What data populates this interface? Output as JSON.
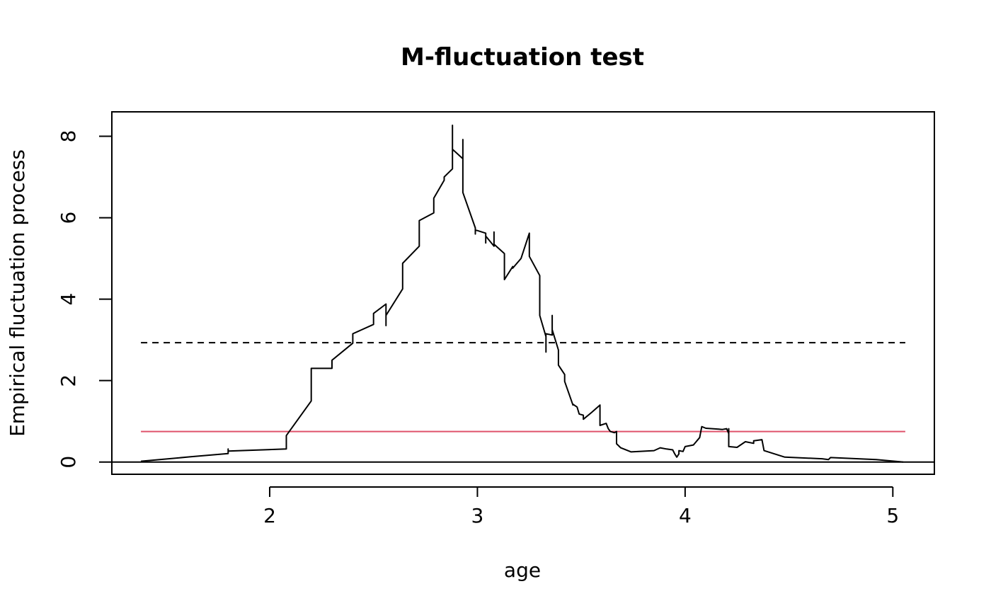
{
  "chart_data": {
    "type": "line",
    "title": "M-fluctuation test",
    "xlabel": "age",
    "ylabel": "Empirical fluctuation process",
    "xlim": [
      1.24,
      5.2
    ],
    "ylim": [
      -0.3,
      8.6
    ],
    "x_ticks": [
      2,
      3,
      4,
      5
    ],
    "x_tick_labels": [
      "2",
      "3",
      "4",
      "5"
    ],
    "y_ticks": [
      0,
      2,
      4,
      6,
      8
    ],
    "y_tick_labels": [
      "0",
      "2",
      "4",
      "6",
      "8"
    ],
    "grid": false,
    "reference_lines": [
      {
        "kind": "horizontal",
        "y": 0,
        "style": "solid",
        "color": "#000000"
      },
      {
        "kind": "horizontal",
        "y": 2.93,
        "x_range": [
          1.38,
          5.06
        ],
        "style": "dashed",
        "color": "#000000"
      },
      {
        "kind": "horizontal",
        "y": 0.75,
        "x_range": [
          1.38,
          5.06
        ],
        "style": "solid",
        "color": "#DF536B"
      }
    ],
    "series": [
      {
        "color": "#000000",
        "x": [
          1.38,
          1.62,
          1.8,
          1.8,
          1.8,
          2.08,
          2.08,
          2.2,
          2.2,
          2.3,
          2.3,
          2.4,
          2.4,
          2.5,
          2.5,
          2.56,
          2.56,
          2.56,
          2.64,
          2.64,
          2.72,
          2.72,
          2.79,
          2.79,
          2.84,
          2.84,
          2.88,
          2.88,
          2.88,
          2.88,
          2.93,
          2.93,
          2.93,
          2.93,
          2.99,
          2.99,
          2.99,
          3.04,
          3.04,
          3.04,
          3.08,
          3.08,
          3.08,
          3.13,
          3.13,
          3.17,
          3.17,
          3.21,
          3.25,
          3.25,
          3.3,
          3.3,
          3.33,
          3.33,
          3.33,
          3.36,
          3.36,
          3.36,
          3.39,
          3.39,
          3.42,
          3.42,
          3.46,
          3.46,
          3.48,
          3.49,
          3.51,
          3.51,
          3.55,
          3.59,
          3.59,
          3.62,
          3.63,
          3.64,
          3.66,
          3.67,
          3.67,
          3.69,
          3.74,
          3.85,
          3.88,
          3.91,
          3.94,
          3.95,
          3.96,
          3.97,
          3.97,
          3.99,
          4.0,
          4.04,
          4.07,
          4.08,
          4.1,
          4.18,
          4.2,
          4.21,
          4.21,
          4.21,
          4.25,
          4.29,
          4.33,
          4.33,
          4.37,
          4.38,
          4.48,
          4.66,
          4.69,
          4.7,
          4.92,
          5.05
        ],
        "y": [
          0.02,
          0.13,
          0.21,
          0.32,
          0.27,
          0.32,
          0.65,
          1.5,
          2.3,
          2.3,
          2.5,
          2.92,
          3.15,
          3.38,
          3.65,
          3.88,
          3.35,
          3.6,
          4.25,
          4.88,
          5.3,
          5.93,
          6.12,
          6.48,
          6.92,
          7.0,
          7.2,
          8.27,
          7.58,
          7.68,
          7.45,
          7.92,
          7.2,
          6.62,
          5.75,
          5.6,
          5.7,
          5.62,
          5.38,
          5.55,
          5.3,
          5.65,
          5.35,
          5.12,
          4.48,
          4.8,
          4.76,
          5.0,
          5.62,
          5.05,
          4.58,
          3.6,
          3.08,
          2.7,
          3.15,
          3.12,
          3.6,
          3.25,
          2.75,
          2.38,
          2.15,
          1.98,
          1.4,
          1.42,
          1.35,
          1.18,
          1.15,
          1.05,
          1.22,
          1.4,
          0.9,
          0.95,
          0.82,
          0.75,
          0.72,
          0.75,
          0.45,
          0.35,
          0.25,
          0.28,
          0.35,
          0.32,
          0.3,
          0.2,
          0.12,
          0.2,
          0.28,
          0.26,
          0.38,
          0.42,
          0.6,
          0.87,
          0.83,
          0.8,
          0.82,
          0.7,
          0.82,
          0.38,
          0.36,
          0.5,
          0.46,
          0.52,
          0.55,
          0.28,
          0.12,
          0.08,
          0.06,
          0.11,
          0.06,
          0.0
        ]
      }
    ]
  }
}
